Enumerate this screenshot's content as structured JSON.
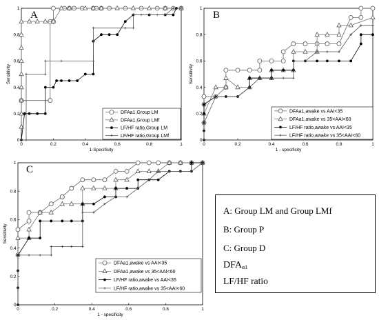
{
  "chart_data": [
    {
      "type": "line",
      "panel_label": "A",
      "xlabel": "1-Specificity",
      "ylabel": "Sensitivity",
      "xlim": [
        0,
        1
      ],
      "ylim": [
        0,
        1
      ],
      "xticks": [
        "0",
        "0.2",
        "0.4",
        "0.6",
        "0.8",
        "1"
      ],
      "yticks": [
        "0",
        "0.2",
        "0.4",
        "0.6",
        "0.8",
        "1"
      ],
      "legend": "bottom-right",
      "series": [
        {
          "name": "DFAa1,Group LM",
          "marker": "circle",
          "x": [
            0,
            0.18,
            0.18,
            0.2,
            0.2,
            0.27,
            0.3,
            0.33,
            0.38,
            0.45,
            0.47,
            0.5,
            0.55,
            0.65,
            0.75,
            0.85,
            0.9,
            0.95,
            1.0
          ],
          "y": [
            0.3,
            0.3,
            0.9,
            0.9,
            1.0,
            1.0,
            1.0,
            1.0,
            1.0,
            1.0,
            1.0,
            1.0,
            1.0,
            1.0,
            1.0,
            1.0,
            1.0,
            1.0,
            1.0
          ]
        },
        {
          "name": "DFAa1,Group LMf",
          "marker": "triangle",
          "x": [
            0,
            0,
            0,
            0,
            0,
            0,
            0,
            0,
            0,
            0.05,
            0.1,
            0.15,
            0.2,
            0.25,
            0.3,
            0.4,
            0.45,
            0.5,
            0.6,
            0.7,
            0.8,
            0.9,
            1.0
          ],
          "y": [
            0.1,
            0.2,
            0.3,
            0.4,
            0.5,
            0.6,
            0.7,
            0.8,
            0.9,
            0.9,
            0.9,
            0.9,
            0.9,
            1.0,
            1.0,
            1.0,
            1.0,
            1.0,
            1.0,
            1.0,
            1.0,
            1.0,
            1.0
          ]
        },
        {
          "name": "LF/HF ratio,Group LM",
          "marker": "dot",
          "x": [
            0,
            0.02,
            0.02,
            0.05,
            0.1,
            0.15,
            0.15,
            0.2,
            0.22,
            0.25,
            0.3,
            0.35,
            0.4,
            0.45,
            0.45,
            0.5,
            0.55,
            0.6,
            0.65,
            0.7,
            0.8,
            0.9,
            0.95,
            0.97
          ],
          "y": [
            0,
            0.2,
            0.2,
            0.2,
            0.2,
            0.2,
            0.4,
            0.4,
            0.45,
            0.45,
            0.45,
            0.45,
            0.5,
            0.5,
            0.75,
            0.8,
            0.8,
            0.8,
            0.9,
            0.95,
            0.95,
            0.95,
            0.95,
            1.0
          ]
        },
        {
          "name": "LF/HF ratio,Group LMf",
          "marker": "cross",
          "x": [
            0,
            0.03,
            0.03,
            0.15,
            0.15,
            0.25,
            0.45,
            0.45,
            0.65,
            0.7,
            0.7,
            0.75,
            0.8,
            0.85,
            0.9,
            0.95,
            1.0
          ],
          "y": [
            0,
            0,
            0.5,
            0.5,
            0.6,
            0.6,
            0.6,
            0.85,
            0.85,
            0.85,
            0.95,
            0.95,
            0.95,
            0.95,
            0.95,
            1.0,
            1.0
          ]
        }
      ]
    },
    {
      "type": "line",
      "panel_label": "B",
      "xlabel": "1 - specificity",
      "ylabel": "Sensitivity",
      "xlim": [
        0,
        1
      ],
      "ylim": [
        0,
        1
      ],
      "xticks": [
        "0",
        "0.2",
        "0.4",
        "0.6",
        "0.8",
        "1"
      ],
      "yticks": [
        "0",
        "0.2",
        "0.4",
        "0.6",
        "0.8",
        "1"
      ],
      "legend": "bottom-right",
      "series": [
        {
          "name": "DFAa1,awake vs AAI<35",
          "marker": "circle",
          "x": [
            0,
            0,
            0,
            0,
            0.07,
            0.13,
            0.13,
            0.2,
            0.27,
            0.33,
            0.33,
            0.4,
            0.47,
            0.47,
            0.53,
            0.6,
            0.67,
            0.73,
            0.8,
            0.87,
            0.93,
            0.93,
            1.0
          ],
          "y": [
            0.13,
            0.27,
            0.33,
            0.33,
            0.33,
            0.4,
            0.53,
            0.53,
            0.53,
            0.53,
            0.6,
            0.6,
            0.6,
            0.67,
            0.73,
            0.73,
            0.73,
            0.73,
            0.73,
            0.93,
            0.93,
            1.0,
            1.0
          ]
        },
        {
          "name": "DFAa1,awake vs 35<AAI<60",
          "marker": "triangle",
          "x": [
            0,
            0.07,
            0.13,
            0.13,
            0.2,
            0.27,
            0.27,
            0.33,
            0.4,
            0.4,
            0.47,
            0.53,
            0.53,
            0.6,
            0.67,
            0.67,
            0.73,
            0.8,
            0.8,
            0.87,
            1.0
          ],
          "y": [
            0.2,
            0.4,
            0.4,
            0.47,
            0.4,
            0.4,
            0.47,
            0.47,
            0.47,
            0.53,
            0.53,
            0.53,
            0.67,
            0.67,
            0.67,
            0.8,
            0.8,
            0.8,
            0.87,
            0.87,
            0.93
          ]
        },
        {
          "name": "LF/HF ratio,awake vs AAI<35",
          "marker": "dot",
          "x": [
            0,
            0,
            0,
            0,
            0,
            0,
            0.07,
            0.13,
            0.2,
            0.27,
            0.27,
            0.33,
            0.4,
            0.4,
            0.47,
            0.53,
            0.53,
            0.6,
            0.67,
            0.73,
            0.8,
            0.87,
            0.93,
            0.93,
            1.0
          ],
          "y": [
            0,
            0.07,
            0.13,
            0.2,
            0.27,
            0.27,
            0.33,
            0.33,
            0.33,
            0.4,
            0.47,
            0.47,
            0.47,
            0.53,
            0.53,
            0.53,
            0.6,
            0.6,
            0.6,
            0.6,
            0.6,
            0.6,
            0.73,
            0.8,
            0.8
          ]
        },
        {
          "name": "LF/HF ratio,awake vs 35<AAI<60",
          "marker": "cross",
          "x": [
            0,
            0,
            0.07,
            0.2,
            0.27,
            0.33,
            0.4,
            0.47,
            0.53,
            0.53,
            0.6,
            0.67,
            0.73,
            0.8,
            0.87,
            0.93,
            1.0
          ],
          "y": [
            0,
            0.13,
            0.33,
            0.33,
            0.4,
            0.47,
            0.47,
            0.47,
            0.47,
            0.6,
            0.6,
            0.67,
            0.67,
            0.67,
            0.8,
            0.87,
            0.87
          ]
        }
      ]
    },
    {
      "type": "line",
      "panel_label": "C",
      "xlabel": "1 - specificity",
      "ylabel": "Sensitivity",
      "xlim": [
        0,
        1
      ],
      "ylim": [
        0,
        1
      ],
      "xticks": [
        "0",
        "0.2",
        "0.4",
        "0.6",
        "0.8",
        "1"
      ],
      "yticks": [
        "0",
        "0.2",
        "0.4",
        "0.6",
        "0.8",
        "1"
      ],
      "legend": "bottom-right",
      "series": [
        {
          "name": "DFAa1,awake vs AAI<35",
          "marker": "circle",
          "x": [
            0,
            0,
            0.06,
            0.06,
            0.12,
            0.18,
            0.18,
            0.24,
            0.24,
            0.29,
            0.35,
            0.41,
            0.47,
            0.53,
            0.59,
            0.65,
            0.71,
            0.76,
            0.82,
            0.88,
            0.94,
            1.0
          ],
          "y": [
            0.35,
            0.53,
            0.59,
            0.65,
            0.65,
            0.71,
            0.71,
            0.76,
            0.76,
            0.82,
            0.88,
            0.88,
            0.88,
            0.94,
            0.94,
            1.0,
            1.0,
            1.0,
            1.0,
            1.0,
            1.0,
            1.0
          ]
        },
        {
          "name": "DFAa1,awake vs 35<AAI<60",
          "marker": "triangle",
          "x": [
            0,
            0.06,
            0.06,
            0.12,
            0.18,
            0.24,
            0.29,
            0.35,
            0.35,
            0.41,
            0.47,
            0.53,
            0.53,
            0.59,
            0.65,
            0.71,
            0.76,
            0.82,
            0.88,
            0.94,
            1.0
          ],
          "y": [
            0.47,
            0.47,
            0.53,
            0.65,
            0.65,
            0.71,
            0.71,
            0.71,
            0.82,
            0.82,
            0.82,
            0.82,
            0.88,
            0.88,
            0.94,
            0.94,
            0.94,
            1.0,
            1.0,
            1.0,
            1.0
          ]
        },
        {
          "name": "LF/HF ratio,awake vs AAI<35",
          "marker": "dot",
          "x": [
            0,
            0,
            0,
            0,
            0.06,
            0.12,
            0.12,
            0.18,
            0.24,
            0.29,
            0.35,
            0.35,
            0.41,
            0.47,
            0.53,
            0.53,
            0.59,
            0.65,
            0.65,
            0.71,
            0.76,
            0.82,
            0.88,
            0.94,
            0.94,
            1.0
          ],
          "y": [
            0,
            0.12,
            0.24,
            0.35,
            0.47,
            0.47,
            0.59,
            0.59,
            0.59,
            0.59,
            0.59,
            0.71,
            0.71,
            0.76,
            0.76,
            0.82,
            0.82,
            0.82,
            0.88,
            0.88,
            0.88,
            0.94,
            0.94,
            0.94,
            1.0,
            1.0
          ]
        },
        {
          "name": "LF/HF ratio,awake vs 35<AAI<60",
          "marker": "cross",
          "x": [
            0,
            0,
            0,
            0.06,
            0.12,
            0.18,
            0.18,
            0.24,
            0.29,
            0.35,
            0.35,
            0.41,
            0.47,
            0.53,
            0.59,
            0.65,
            0.71,
            0.76,
            0.82,
            0.88,
            0.94,
            1.0
          ],
          "y": [
            0,
            0.12,
            0.35,
            0.35,
            0.35,
            0.35,
            0.41,
            0.41,
            0.41,
            0.41,
            0.65,
            0.65,
            0.71,
            0.76,
            0.76,
            0.82,
            0.88,
            0.94,
            0.94,
            0.94,
            0.94,
            1.0
          ]
        }
      ]
    }
  ],
  "legend_box": {
    "line1": "A: Group LM and Group LMf",
    "line2": "B: Group P",
    "line3": "C: Group D",
    "line4_main": "DFA",
    "line4_sub": "α1",
    "line5": "LF/HF ratio"
  }
}
